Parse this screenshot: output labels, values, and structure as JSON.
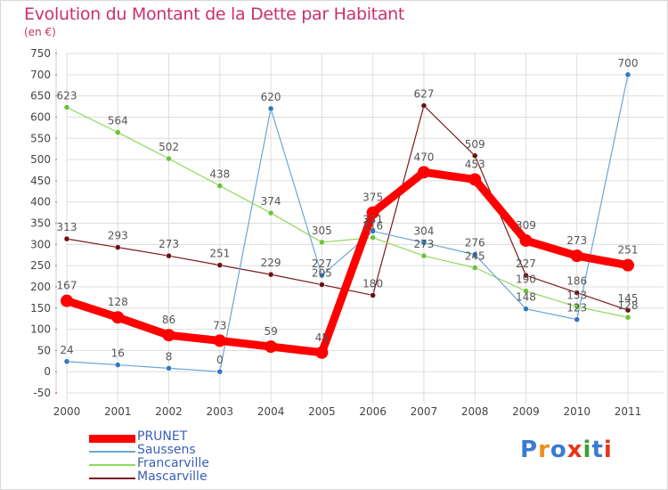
{
  "title": "Evolution du Montant de la Dette par Habitant",
  "unit": "(en €)",
  "logo": {
    "text": "Proxiti",
    "letter_colors": [
      "#3a7bd5",
      "#f08c1a",
      "#3a7bd5",
      "#e8331a",
      "#3aa13a",
      "#3a7bd5",
      "#e8331a"
    ]
  },
  "chart_data": {
    "type": "line",
    "title": "Evolution du Montant de la Dette par Habitant",
    "ylabel": "(en €)",
    "xlabel": "",
    "x": [
      "2000",
      "2001",
      "2002",
      "2003",
      "2004",
      "2005",
      "2006",
      "2007",
      "2008",
      "2009",
      "2010",
      "2011"
    ],
    "ylim": [
      -50,
      750
    ],
    "yticks": [
      -50,
      0,
      50,
      100,
      150,
      200,
      250,
      300,
      350,
      400,
      450,
      500,
      550,
      600,
      650,
      700,
      750
    ],
    "grid": true,
    "legend": "bottom-left",
    "series": [
      {
        "name": "Mascarville",
        "color": "#7a1a1e",
        "marker": "#6e1010",
        "width": 1.2,
        "values": [
          313,
          293,
          273,
          251,
          229,
          205,
          180,
          627,
          509,
          227,
          186,
          145
        ],
        "labels": [
          "313",
          "293",
          "273",
          "251",
          "229",
          "205",
          "180",
          "627",
          "509",
          "227",
          "186",
          "145"
        ]
      },
      {
        "name": "Francarville",
        "color": "#8fd95a",
        "marker": "#6cc23a",
        "width": 1.2,
        "values": [
          623,
          564,
          502,
          438,
          374,
          305,
          316,
          273,
          245,
          190,
          153,
          128
        ],
        "labels": [
          "623",
          "564",
          "502",
          "438",
          "374",
          "305",
          "316",
          "273",
          "245",
          "190",
          "153",
          "128"
        ]
      },
      {
        "name": "Saussens",
        "color": "#6aa6d6",
        "marker": "#2f78c0",
        "width": 1.2,
        "values": [
          24,
          16,
          8,
          0,
          620,
          227,
          331,
          304,
          276,
          148,
          123,
          700
        ],
        "labels": [
          "24",
          "16",
          "8",
          "0",
          "620",
          "227",
          "331",
          "304",
          "276",
          "148",
          "123",
          "700"
        ]
      },
      {
        "name": "PRUNET",
        "color": "#ff0000",
        "marker": "#ff0000",
        "width": 9,
        "values": [
          167,
          128,
          86,
          73,
          59,
          45,
          375,
          470,
          453,
          309,
          273,
          251
        ],
        "labels": [
          "167",
          "128",
          "86",
          "73",
          "59",
          "45",
          "375",
          "470",
          "453",
          "309",
          "273",
          "251"
        ]
      }
    ]
  },
  "legend_items": [
    {
      "name": "PRUNET",
      "color": "#ff0000",
      "width": 9
    },
    {
      "name": "Saussens",
      "color": "#6aa6d6",
      "width": 2
    },
    {
      "name": "Francarville",
      "color": "#8fd95a",
      "width": 2
    },
    {
      "name": "Mascarville",
      "color": "#7a1a1e",
      "width": 2
    }
  ]
}
